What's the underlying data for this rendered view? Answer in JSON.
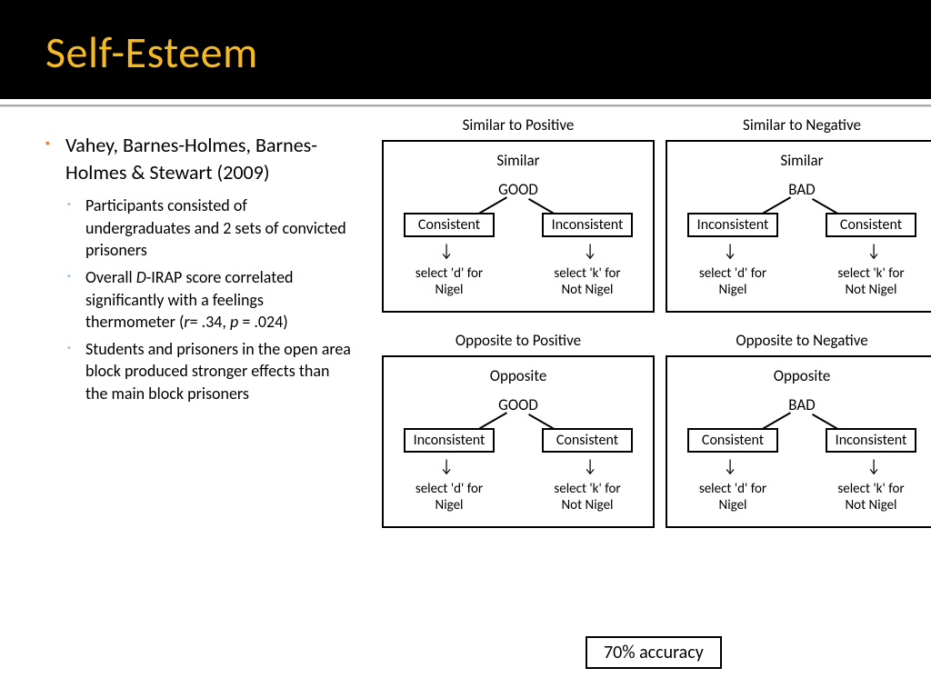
{
  "colors": {
    "title_color": "#f5b921",
    "bullet_lvl1_color": "#ed7d31",
    "bullet_lvl2_color": "#9dc3e6",
    "header_bg": "#000000",
    "page_bg": "#ffffff",
    "border_color": "#000000"
  },
  "header": {
    "title": "Self-Esteem",
    "title_fontsize": 48
  },
  "text": {
    "lvl1": "Vahey, Barnes-Holmes, Barnes-Holmes & Stewart (2009)",
    "bullets": [
      {
        "plain": "Participants consisted of undergraduates and 2 sets of convicted prisoners"
      },
      {
        "html": "Overall <span class='italic'>D</span>-IRAP score correlated significantly with a feelings thermometer (<span class='italic'>r</span>= .34, <span class='italic'>p</span> = .024)"
      },
      {
        "plain": "Students and prisoners in the open area block produced stronger effects than the main block prisoners"
      }
    ]
  },
  "panels": [
    {
      "outer_title": "Similar to Positive",
      "inner_title": "Similar",
      "root": "GOOD",
      "left_box": "Consistent",
      "right_box": "Inconsistent",
      "left_result_l1": "select 'd' for",
      "left_result_l2": "Nigel",
      "right_result_l1": "select 'k' for",
      "right_result_l2": "Not Nigel"
    },
    {
      "outer_title": "Similar to Negative",
      "inner_title": "Similar",
      "root": "BAD",
      "left_box": "Inconsistent",
      "right_box": "Consistent",
      "left_result_l1": "select 'd' for",
      "left_result_l2": "Nigel",
      "right_result_l1": "select 'k' for",
      "right_result_l2": "Not Nigel"
    },
    {
      "outer_title": "Opposite to Positive",
      "inner_title": "Opposite",
      "root": "GOOD",
      "left_box": "Inconsistent",
      "right_box": "Consistent",
      "left_result_l1": "select 'd' for",
      "left_result_l2": "Nigel",
      "right_result_l1": "select 'k' for",
      "right_result_l2": "Not Nigel"
    },
    {
      "outer_title": "Opposite to Negative",
      "inner_title": "Opposite",
      "root": "BAD",
      "left_box": "Consistent",
      "right_box": "Inconsistent",
      "left_result_l1": "select 'd' for",
      "left_result_l2": "Nigel",
      "right_result_l1": "select 'k' for",
      "right_result_l2": "Not Nigel"
    }
  ],
  "accuracy": "70% accuracy"
}
